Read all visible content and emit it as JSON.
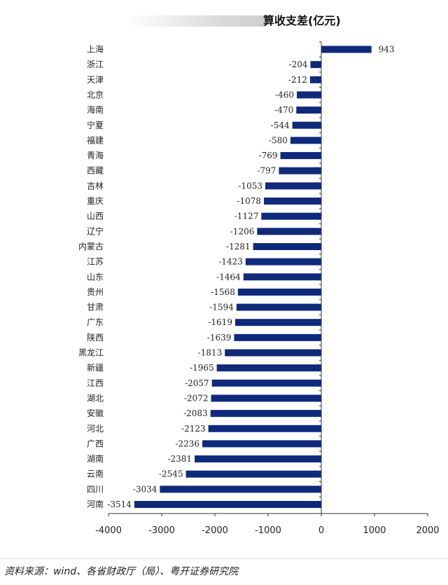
{
  "chart_data": {
    "type": "bar",
    "orientation": "horizontal",
    "title": "算收支差(亿元)",
    "categories": [
      "上海",
      "浙江",
      "天津",
      "北京",
      "海南",
      "宁夏",
      "福建",
      "青海",
      "西藏",
      "吉林",
      "重庆",
      "山西",
      "辽宁",
      "内蒙古",
      "江苏",
      "山东",
      "贵州",
      "甘肃",
      "广东",
      "陕西",
      "黑龙江",
      "新疆",
      "江西",
      "湖北",
      "安徽",
      "河北",
      "广西",
      "湖南",
      "云南",
      "四川",
      "河南"
    ],
    "values": [
      943,
      -204,
      -212,
      -460,
      -470,
      -544,
      -580,
      -769,
      -797,
      -1053,
      -1078,
      -1127,
      -1206,
      -1281,
      -1423,
      -1464,
      -1568,
      -1594,
      -1619,
      -1639,
      -1813,
      -1965,
      -2057,
      -2072,
      -2083,
      -2123,
      -2236,
      -2381,
      -2545,
      -3034,
      -3514
    ],
    "xlim": [
      -4000,
      2000
    ],
    "xticks": [
      -4000,
      -3000,
      -2000,
      -1000,
      0,
      1000,
      2000
    ],
    "grid": false,
    "bar_color": "#0f2a7a",
    "data_labels": true
  },
  "footer": {
    "source": "资料来源：wind、各省财政厅（局）、粤开证券研究院"
  }
}
